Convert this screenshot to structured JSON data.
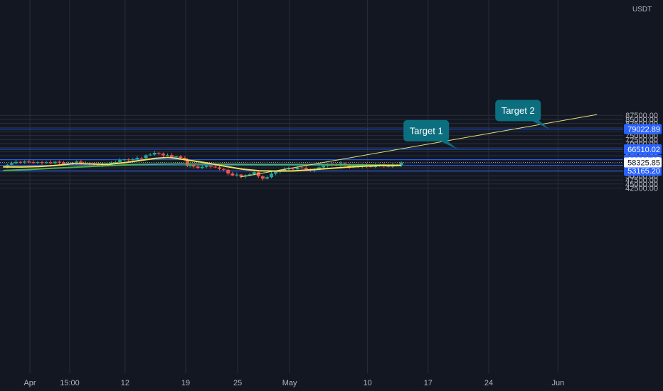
{
  "chart_data": {
    "type": "candlestick",
    "currency": "USDT",
    "price_axis": {
      "ylim": [
        41500,
        87500
      ],
      "ticks": [
        42500,
        45000,
        47500,
        50000,
        52500,
        55000,
        57500,
        60000,
        62500,
        65000,
        67500,
        70000,
        72500,
        75000,
        77500,
        80000,
        82500,
        85000,
        87500
      ]
    },
    "time_axis": {
      "ticks": [
        {
          "label": "Apr",
          "day": 0
        },
        {
          "label": "15:00",
          "day": 4.6
        },
        {
          "label": "12",
          "day": 11
        },
        {
          "label": "19",
          "day": 18
        },
        {
          "label": "25",
          "day": 24
        },
        {
          "label": "May",
          "day": 30
        },
        {
          "label": "10",
          "day": 39
        },
        {
          "label": "17",
          "day": 46
        },
        {
          "label": "24",
          "day": 53
        },
        {
          "label": "Jun",
          "day": 61
        }
      ]
    },
    "price_lines": [
      {
        "value": 79022.89,
        "label": "79022.89"
      },
      {
        "value": 66510.02,
        "label": "66510.02"
      },
      {
        "value": 60066.05,
        "label": "60066.05"
      },
      {
        "value": 56509.26,
        "label": "56509.26"
      },
      {
        "value": 53165.2,
        "label": "53165.20"
      }
    ],
    "current_price": {
      "value": 58325.85,
      "label": "58325.85"
    },
    "close_series": [
      [
        -3.1,
        56000
      ],
      [
        -2.6,
        56900
      ],
      [
        -2.1,
        57900
      ],
      [
        -1.6,
        58700
      ],
      [
        -1.1,
        58600
      ],
      [
        -0.6,
        58900
      ],
      [
        -0.1,
        58500
      ],
      [
        0.4,
        58200
      ],
      [
        0.9,
        58600
      ],
      [
        1.4,
        58100
      ],
      [
        1.9,
        58400
      ],
      [
        2.4,
        57900
      ],
      [
        2.9,
        58800
      ],
      [
        3.4,
        58300
      ],
      [
        3.9,
        57500
      ],
      [
        4.4,
        57800
      ],
      [
        4.9,
        58200
      ],
      [
        5.4,
        58900
      ],
      [
        5.9,
        57600
      ],
      [
        6.4,
        57900
      ],
      [
        6.9,
        57400
      ],
      [
        7.4,
        56900
      ],
      [
        7.9,
        56200
      ],
      [
        8.4,
        57000
      ],
      [
        8.9,
        57700
      ],
      [
        9.4,
        58300
      ],
      [
        9.9,
        58500
      ],
      [
        10.4,
        59800
      ],
      [
        10.9,
        60200
      ],
      [
        11.4,
        59800
      ],
      [
        11.9,
        60300
      ],
      [
        12.4,
        61200
      ],
      [
        12.9,
        61000
      ],
      [
        13.4,
        62800
      ],
      [
        13.9,
        63200
      ],
      [
        14.4,
        64300
      ],
      [
        14.9,
        63800
      ],
      [
        15.4,
        62700
      ],
      [
        15.9,
        62900
      ],
      [
        16.4,
        61500
      ],
      [
        16.9,
        62100
      ],
      [
        17.4,
        61200
      ],
      [
        17.9,
        59700
      ],
      [
        18.2,
        56200
      ],
      [
        18.5,
        56900
      ],
      [
        18.9,
        55800
      ],
      [
        19.4,
        54900
      ],
      [
        19.9,
        55600
      ],
      [
        20.4,
        56400
      ],
      [
        20.9,
        55700
      ],
      [
        21.4,
        55300
      ],
      [
        21.9,
        54300
      ],
      [
        22.4,
        53800
      ],
      [
        22.9,
        51500
      ],
      [
        23.4,
        50300
      ],
      [
        23.9,
        50800
      ],
      [
        24.4,
        49600
      ],
      [
        24.9,
        50400
      ],
      [
        25.4,
        51000
      ],
      [
        25.9,
        52300
      ],
      [
        26.4,
        49700
      ],
      [
        26.9,
        48300
      ],
      [
        27.4,
        49200
      ],
      [
        27.9,
        51400
      ],
      [
        28.4,
        52600
      ],
      [
        28.9,
        53300
      ],
      [
        29.4,
        54300
      ],
      [
        29.9,
        54500
      ],
      [
        30.4,
        54100
      ],
      [
        30.9,
        55200
      ],
      [
        31.4,
        55000
      ],
      [
        31.9,
        54100
      ],
      [
        32.4,
        53500
      ],
      [
        32.9,
        53900
      ],
      [
        33.4,
        55300
      ],
      [
        33.9,
        56200
      ],
      [
        34.4,
        57500
      ],
      [
        34.9,
        57100
      ],
      [
        35.4,
        56400
      ],
      [
        35.9,
        57800
      ],
      [
        36.4,
        57000
      ],
      [
        36.9,
        55400
      ],
      [
        37.4,
        56400
      ],
      [
        37.9,
        55700
      ],
      [
        38.4,
        57200
      ],
      [
        38.9,
        56200
      ],
      [
        39.4,
        55500
      ],
      [
        39.9,
        56700
      ],
      [
        40.4,
        57200
      ],
      [
        40.9,
        56400
      ],
      [
        41.4,
        55700
      ],
      [
        41.9,
        56900
      ],
      [
        42.4,
        56800
      ],
      [
        42.9,
        58300
      ]
    ],
    "ma_short": [
      [
        -3.1,
        55600
      ],
      [
        -1,
        55500
      ],
      [
        1,
        55800
      ],
      [
        3,
        56500
      ],
      [
        5,
        57600
      ],
      [
        7,
        57400
      ],
      [
        9,
        57100
      ],
      [
        11,
        58200
      ],
      [
        13,
        59800
      ],
      [
        14.5,
        60900
      ],
      [
        16,
        61400
      ],
      [
        17,
        60800
      ],
      [
        18.5,
        59600
      ],
      [
        20.5,
        58000
      ],
      [
        22.5,
        56000
      ],
      [
        24.5,
        54200
      ],
      [
        26.5,
        53200
      ],
      [
        28.5,
        53000
      ],
      [
        30.5,
        53100
      ],
      [
        32.5,
        53800
      ],
      [
        34.5,
        54600
      ],
      [
        36.5,
        55400
      ],
      [
        38.5,
        56000
      ],
      [
        40.5,
        56400
      ],
      [
        42.9,
        56500
      ]
    ],
    "ma_long": [
      [
        -3.1,
        53300
      ],
      [
        0,
        54000
      ],
      [
        3,
        54800
      ],
      [
        6,
        55600
      ],
      [
        9,
        56300
      ],
      [
        12,
        57000
      ],
      [
        15,
        57300
      ],
      [
        18,
        57400
      ],
      [
        21,
        57300
      ],
      [
        24,
        57100
      ],
      [
        27,
        57000
      ],
      [
        30,
        57000
      ],
      [
        33,
        57000
      ],
      [
        36,
        56900
      ],
      [
        39,
        56800
      ],
      [
        42.9,
        56700
      ]
    ],
    "trendline": [
      [
        24.3,
        49300
      ],
      [
        65.5,
        88000
      ]
    ],
    "callouts": [
      {
        "label": "Target 1",
        "anchor_day": 49.4,
        "anchor_price": 66510.02
      },
      {
        "label": "Target 2",
        "anchor_day": 60.0,
        "anchor_price": 79022.89
      }
    ],
    "colors": {
      "background": "#131722",
      "grid": "#2a2e39",
      "up": "#26a69a",
      "down": "#ef5350",
      "ma_short": "#f1e35a",
      "ma_long": "#4caf50",
      "trendline": "#dfe07a",
      "price_line": "#2962ff",
      "callout": "#0c6f7f",
      "current_price_tag": "#ffffff"
    }
  }
}
